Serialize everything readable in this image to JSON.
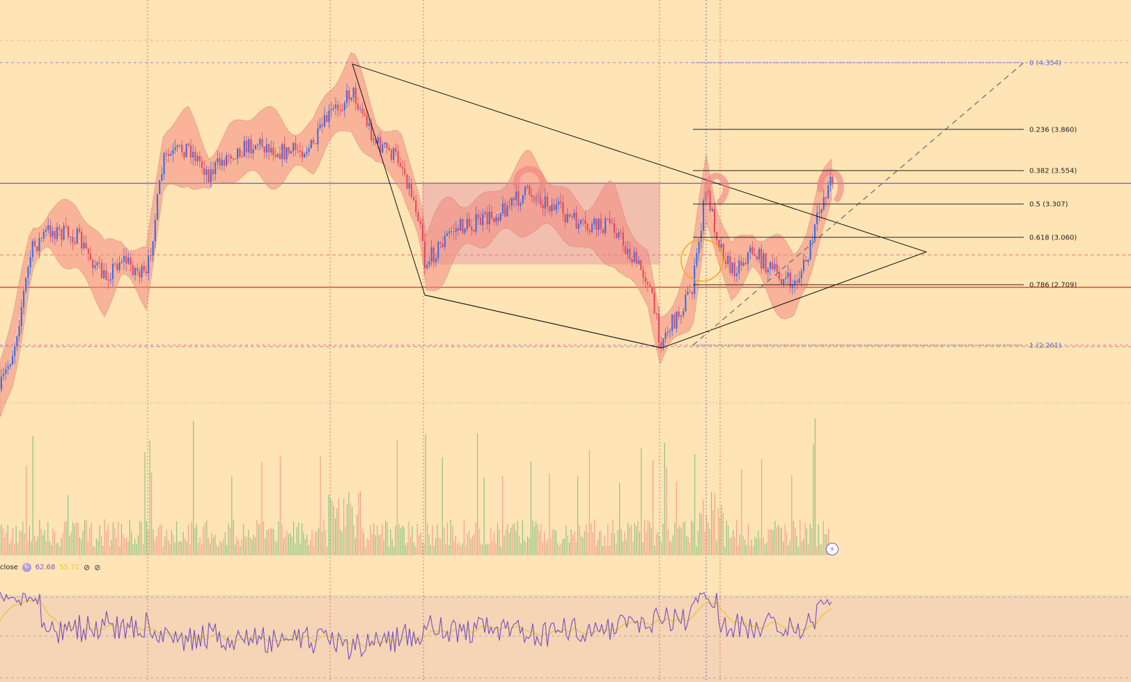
{
  "chart_data": {
    "type": "candlestick",
    "price_range": [
      1.8,
      5.0
    ],
    "fib_levels": [
      {
        "ratio": "0",
        "price": 4.354,
        "label": "0 (4.354)",
        "color": "#5b6bd8"
      },
      {
        "ratio": "0.236",
        "price": 3.86,
        "label": "0.236 (3.860)",
        "color": "#222222"
      },
      {
        "ratio": "0.382",
        "price": 3.554,
        "label": "0.382 (3.554)",
        "color": "#222222"
      },
      {
        "ratio": "0.5",
        "price": 3.307,
        "label": "0.5 (3.307)",
        "color": "#222222"
      },
      {
        "ratio": "0.618",
        "price": 3.06,
        "label": "0.618 (3.060)",
        "color": "#222222"
      },
      {
        "ratio": "0.786",
        "price": 2.709,
        "label": "0.786 (2.709)",
        "color": "#222222"
      },
      {
        "ratio": "1",
        "price": 2.261,
        "label": "1 (2.261)",
        "color": "#5b6bd8"
      }
    ],
    "horizontal_levels": [
      {
        "price": 3.46,
        "color": "#5b6bd8",
        "style": "solid"
      },
      {
        "price": 2.69,
        "color": "#e53935",
        "style": "solid"
      },
      {
        "price": 2.93,
        "color": "#e57373",
        "style": "dashed"
      },
      {
        "price": 2.25,
        "color": "#e57373",
        "style": "dashed"
      }
    ],
    "candle_colors": {
      "up": "#3f6fe0",
      "down": "#e64a5a"
    },
    "rsi": {
      "value": "62.68",
      "ma_value": "55.71",
      "overbought": 70,
      "oversold": 30,
      "line_color": "#7e57c2",
      "ma_color": "#e8c432"
    }
  },
  "rsi_legend": {
    "source": "close",
    "value": "62.68",
    "ma_value": "55.71"
  }
}
